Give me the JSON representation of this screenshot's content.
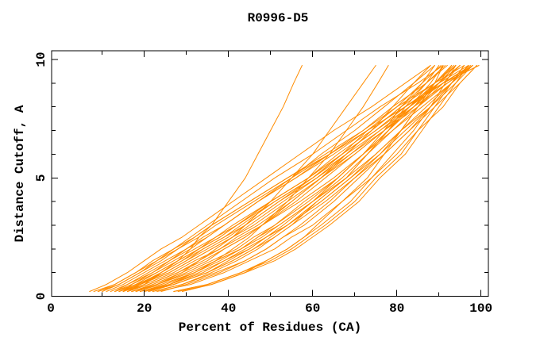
{
  "figure": {
    "background": "#FFFFFF"
  },
  "chart_data": {
    "type": "line",
    "title": "R0996-D5",
    "xlabel": "Percent of Residues (CA)",
    "ylabel": "Distance Cutoff, A",
    "xlim": [
      0,
      100
    ],
    "ylim": [
      0,
      10
    ],
    "grid": false,
    "legend": null,
    "frame": "box with inward ticks on all four sides",
    "x_major_ticks": [
      0,
      20,
      40,
      60,
      80,
      100
    ],
    "x_minor_ticks": [
      10,
      30,
      50,
      70,
      90
    ],
    "x_tick_labels": [
      "0",
      "20",
      "40",
      "60",
      "80",
      "100"
    ],
    "y_major_ticks": [
      0,
      5,
      10
    ],
    "y_minor_ticks": [
      1,
      2,
      3,
      4,
      6,
      7,
      8,
      9
    ],
    "y_tick_labels": [
      "0",
      "5",
      "10"
    ],
    "colors": {
      "line": "#FF8C00",
      "axis": "#000000",
      "text": "#000000",
      "background": "#FFFFFF"
    },
    "y_levels": [
      0.2,
      0.5,
      1,
      1.5,
      2,
      2.5,
      3,
      4,
      5,
      6,
      7,
      8,
      9,
      9.75
    ],
    "series_x": [
      [
        27,
        35,
        43,
        49,
        54,
        58,
        62,
        69,
        74,
        79,
        84,
        88,
        91.5,
        94
      ],
      [
        22,
        29,
        37,
        44,
        49,
        53,
        58,
        65,
        71,
        77,
        83,
        88,
        93,
        96
      ],
      [
        19,
        26,
        33,
        39,
        44,
        49,
        54,
        62,
        69,
        76,
        82,
        88,
        94,
        98
      ],
      [
        13,
        18,
        25,
        30,
        35,
        40,
        44,
        52,
        60,
        67,
        73,
        80,
        86,
        90.5
      ],
      [
        15,
        18.5,
        24,
        29,
        33,
        38,
        42,
        50,
        59,
        66,
        74,
        81,
        89,
        94
      ],
      [
        9,
        14,
        19,
        23,
        28,
        32,
        36,
        45,
        54,
        63,
        72,
        80,
        89,
        96
      ],
      [
        20,
        27,
        35,
        40,
        45,
        49,
        53,
        60,
        66,
        72,
        77,
        81,
        86,
        89
      ],
      [
        19,
        25,
        32,
        38,
        43,
        47,
        51,
        59,
        66,
        72,
        78,
        84,
        89,
        93
      ],
      [
        14,
        19,
        26,
        31,
        36,
        41,
        46,
        54,
        62,
        70,
        77,
        83,
        90,
        94
      ],
      [
        15,
        19,
        24,
        29,
        34,
        39,
        44,
        52,
        61,
        69,
        77,
        85,
        92,
        98
      ],
      [
        9,
        13,
        18,
        22,
        27,
        31,
        35,
        43,
        51,
        60,
        68,
        76,
        85,
        91
      ],
      [
        28,
        36,
        44,
        51,
        56,
        60,
        64,
        71,
        76,
        82,
        86,
        90,
        94,
        97
      ],
      [
        22,
        29,
        36,
        42,
        47,
        51,
        55,
        61,
        68,
        73,
        78,
        82,
        87,
        90
      ],
      [
        17,
        23,
        31,
        37,
        43,
        48,
        52,
        60,
        68,
        75,
        81,
        88,
        93,
        98
      ],
      [
        15,
        20,
        27,
        32,
        38,
        42,
        47,
        55,
        62,
        69,
        76,
        83,
        89,
        93.5
      ],
      [
        16,
        19,
        25,
        30,
        34,
        39,
        43,
        51,
        60,
        67,
        75,
        82,
        90,
        95
      ],
      [
        8,
        13,
        18,
        23,
        27,
        32,
        36,
        45,
        54,
        64,
        73,
        82,
        91,
        98
      ],
      [
        29,
        36,
        44,
        49,
        54,
        58,
        61,
        67,
        73,
        77,
        81,
        85,
        89,
        91
      ],
      [
        18,
        24,
        32,
        37,
        43,
        47,
        52,
        60,
        67,
        73,
        79,
        85,
        91,
        95
      ],
      [
        11,
        15,
        20,
        25,
        30,
        34,
        39,
        47,
        56,
        64,
        72,
        79,
        87,
        92
      ],
      [
        23,
        31,
        39,
        45,
        51,
        55,
        60,
        67,
        74,
        80,
        85,
        91,
        95,
        99
      ],
      [
        14,
        19,
        26,
        31,
        36,
        41,
        45,
        53,
        61,
        68,
        74,
        81,
        87,
        91.5
      ],
      [
        15,
        17,
        22,
        26,
        30,
        35,
        39,
        47,
        56,
        65,
        73,
        82,
        90,
        97
      ],
      [
        13,
        16,
        21,
        26,
        31,
        35,
        39,
        47,
        55,
        62,
        70,
        77,
        84,
        89
      ],
      [
        27,
        35,
        43,
        50,
        55,
        59,
        63,
        70,
        75,
        81,
        85,
        89,
        93,
        96
      ],
      [
        20,
        26,
        34,
        39,
        45,
        49,
        54,
        62,
        69,
        75,
        81,
        87,
        93,
        97
      ],
      [
        17,
        22,
        29,
        35,
        39,
        44,
        48,
        55,
        62,
        68,
        74,
        79,
        84,
        88
      ],
      [
        16,
        21,
        28,
        33,
        38,
        43,
        48,
        56,
        63,
        70,
        77,
        84,
        90,
        94
      ],
      [
        13,
        17,
        23,
        28,
        33,
        38,
        42,
        51,
        60,
        68,
        76,
        84,
        92,
        98
      ],
      [
        7,
        11,
        16,
        20,
        24,
        29,
        33,
        41,
        49,
        57,
        65,
        74,
        82,
        88
      ],
      [
        17,
        23,
        30,
        36,
        42,
        46,
        51,
        58,
        66,
        72,
        78,
        84,
        90,
        94
      ],
      [
        24,
        30,
        38,
        44,
        49,
        53,
        57,
        64,
        70,
        76,
        81,
        85,
        90,
        93
      ],
      [
        16,
        21,
        28,
        34,
        39,
        44,
        48,
        57,
        65,
        72,
        79,
        86,
        93,
        97
      ],
      [
        14,
        18,
        23,
        28,
        33,
        37,
        42,
        50,
        59,
        67,
        75,
        82,
        90,
        95
      ],
      [
        21,
        27,
        35,
        41,
        46,
        50,
        54,
        61,
        68,
        73,
        78,
        83,
        88,
        91
      ],
      [
        21,
        27,
        35,
        41,
        46,
        51,
        55,
        63,
        70,
        77,
        83,
        89,
        95,
        99
      ],
      [
        10,
        14,
        19,
        24,
        28,
        33,
        37,
        46,
        55,
        64,
        73,
        82,
        91,
        99.5
      ],
      [
        12,
        16,
        22,
        27,
        32,
        37,
        41,
        50,
        59,
        67,
        75,
        83,
        91,
        97.5
      ],
      [
        16,
        20,
        24,
        28,
        31,
        33,
        36,
        40,
        44,
        47,
        50,
        53,
        55.5,
        57.5
      ],
      [
        18,
        23,
        29,
        33,
        37,
        41,
        44,
        50,
        55,
        60,
        64,
        68,
        72,
        75
      ],
      [
        21,
        26,
        32,
        37,
        41,
        45,
        48,
        54,
        59,
        64,
        68,
        72,
        75.5,
        78
      ]
    ]
  }
}
